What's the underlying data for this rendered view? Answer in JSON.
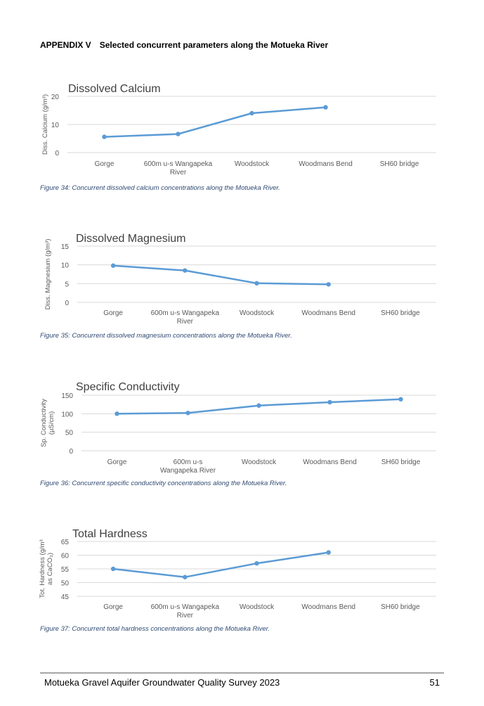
{
  "header": {
    "appendix": "APPENDIX V",
    "title": "Selected concurrent parameters along the Motueka River"
  },
  "colors": {
    "series": "#5b9bd5",
    "grid": "#d9d9d9",
    "axis_text": "#595959",
    "caption": "#2f4a73"
  },
  "chart_data": [
    {
      "type": "line",
      "title": "Dissolved Calcium",
      "ylabel": "Diss. Calcium (g/m³)",
      "categories": [
        "Gorge",
        "600m u-s Wangapeka River",
        "Woodstock",
        "Woodmans Bend",
        "SH60 bridge"
      ],
      "series": [
        {
          "values": [
            5.6,
            6.6,
            14.0,
            16.1,
            null
          ]
        }
      ],
      "ylim": [
        0,
        20
      ],
      "yticks": [
        0,
        10,
        20
      ],
      "grid": true,
      "caption": "Figure 34: Concurrent dissolved calcium concentrations along the Motueka River."
    },
    {
      "type": "line",
      "title": "Dissolved Magnesium",
      "ylabel": "Diss. Magnesium (g/m³)",
      "categories": [
        "Gorge",
        "600m u-s Wangapeka River",
        "Woodstock",
        "Woodmans Bend",
        "SH60 bridge"
      ],
      "series": [
        {
          "values": [
            9.8,
            8.5,
            5.1,
            4.8,
            null
          ]
        }
      ],
      "ylim": [
        0,
        15
      ],
      "yticks": [
        0,
        5,
        10,
        15
      ],
      "grid": true,
      "caption": "Figure 35: Concurrent dissolved magnesium concentrations along the Motueka River."
    },
    {
      "type": "line",
      "title": "Specific Conductivity",
      "ylabel": "Sp. Conductivity (µS/cm)",
      "categories": [
        "Gorge",
        "600m u-s Wangapeka River",
        "Woodstock",
        "Woodmans Bend",
        "SH60 bridge"
      ],
      "series": [
        {
          "values": [
            100,
            102,
            122,
            131,
            139
          ]
        }
      ],
      "ylim": [
        0,
        150
      ],
      "yticks": [
        0,
        50,
        100,
        150
      ],
      "grid": true,
      "caption": "Figure 36: Concurrent specific conductivity concentrations along the Motueka River."
    },
    {
      "type": "line",
      "title": "Total Hardness",
      "ylabel": "Tot. Hardness (g/m³ as CaCO₃)",
      "categories": [
        "Gorge",
        "600m u-s Wangapeka River",
        "Woodstock",
        "Woodmans Bend",
        "SH60 bridge"
      ],
      "series": [
        {
          "values": [
            55,
            52,
            57,
            61,
            null
          ]
        }
      ],
      "ylim": [
        45,
        65
      ],
      "yticks": [
        45,
        50,
        55,
        60,
        65
      ],
      "grid": true,
      "caption": "Figure 37: Concurrent total hardness concentrations along the Motueka River."
    }
  ],
  "footer": {
    "title": "Motueka Gravel Aquifer Groundwater Quality Survey 2023",
    "page": "51"
  }
}
